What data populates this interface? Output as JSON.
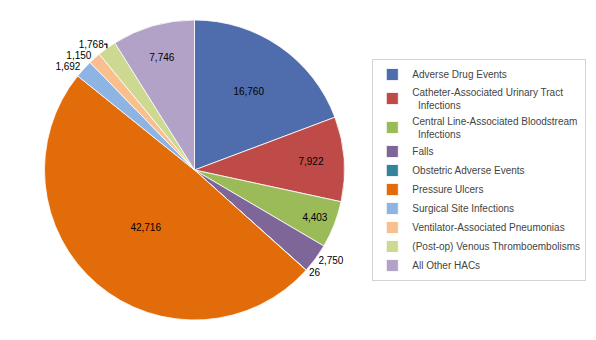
{
  "chart_data": {
    "type": "pie",
    "categories": [
      "Adverse Drug Events",
      "Catheter-Associated Urinary Tract\n  Infections",
      "Central Line-Associated Bloodstream\n  Infections",
      "Falls",
      "Obstetric Adverse Events",
      "Pressure Ulcers",
      "Surgical Site Infections",
      "Ventilator-Associated Pneumonias",
      "(Post-op) Venous Thromboembolisms",
      "All Other HACs"
    ],
    "values": [
      16760,
      7922,
      4403,
      2750,
      26,
      42716,
      1692,
      1150,
      1768,
      7746
    ],
    "value_labels": [
      "16,760",
      "7,922",
      "4,403",
      "2,750",
      "26",
      "42,716",
      "1,692",
      "1,150",
      "1,768",
      "7,746"
    ],
    "colors": [
      "#4F6CAD",
      "#BE4B48",
      "#9BBB59",
      "#7E6699",
      "#31849B",
      "#E26B0A",
      "#8DB4E2",
      "#FABF8F",
      "#CDD890",
      "#B3A2C7"
    ],
    "data_labels": true,
    "legend": "right"
  }
}
